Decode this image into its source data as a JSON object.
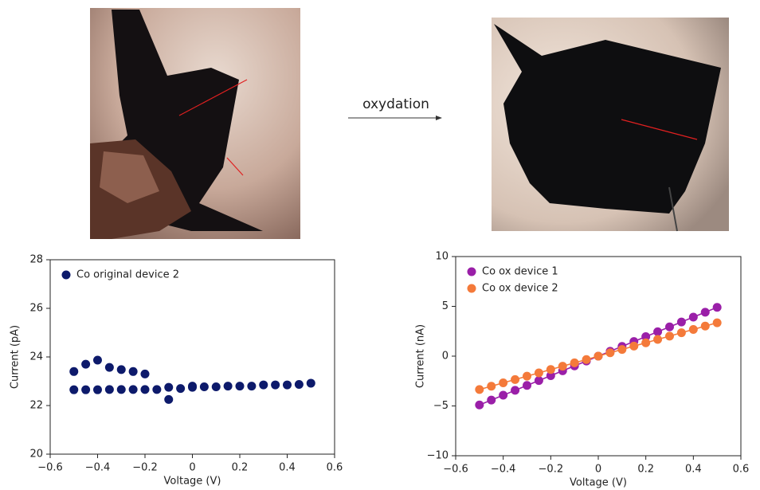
{
  "annotation": "oxydation",
  "chart_data": [
    {
      "type": "scatter",
      "xlabel": "Voltage (V)",
      "ylabel": "Current (pA)",
      "legend": "upper left",
      "xlim": [
        -0.6,
        0.6
      ],
      "ylim": [
        20,
        28
      ],
      "xticks": [
        {
          "value": -0.6,
          "label": "−0.6"
        },
        {
          "value": -0.4,
          "label": "−0.4"
        },
        {
          "value": -0.2,
          "label": "−0.2"
        },
        0,
        0.2,
        0.4,
        0.6
      ],
      "yticks": [
        20,
        22,
        24,
        26,
        28
      ],
      "x": [
        -0.5,
        -0.45,
        -0.4,
        -0.35,
        -0.3,
        -0.25,
        -0.2,
        -0.5,
        -0.45,
        -0.4,
        -0.35,
        -0.3,
        -0.25,
        -0.2,
        -0.15,
        -0.1,
        -0.05,
        0,
        0.05,
        0.1,
        0.15,
        0.2,
        0.25,
        0.3,
        0.35,
        0.4,
        0.45,
        0.5,
        -0.1,
        0
      ],
      "series": [
        {
          "name": "Co original device 2",
          "color": "#0d1a6b",
          "values": [
            23.4,
            23.7,
            23.87,
            23.57,
            23.48,
            23.4,
            23.3,
            22.65,
            22.65,
            22.65,
            22.66,
            22.66,
            22.66,
            22.66,
            22.66,
            22.75,
            22.7,
            22.8,
            22.77,
            22.77,
            22.8,
            22.8,
            22.8,
            22.85,
            22.85,
            22.85,
            22.87,
            22.92,
            22.25,
            22.75
          ]
        }
      ]
    },
    {
      "type": "line",
      "xlabel": "Voltage (V)",
      "ylabel": "Current (nA)",
      "legend": "upper left",
      "xlim": [
        -0.6,
        0.6
      ],
      "ylim": [
        -10,
        10
      ],
      "xticks": [
        {
          "value": -0.6,
          "label": "−0.6"
        },
        {
          "value": -0.4,
          "label": "−0.4"
        },
        {
          "value": -0.2,
          "label": "−0.2"
        },
        0,
        0.2,
        0.4,
        0.6
      ],
      "yticks": [
        {
          "value": -10,
          "label": "−10"
        },
        {
          "value": -5,
          "label": "−5"
        },
        0,
        5,
        10
      ],
      "x": [
        -0.5,
        -0.45,
        -0.4,
        -0.35,
        -0.3,
        -0.25,
        -0.2,
        -0.15,
        -0.1,
        -0.05,
        0,
        0.05,
        0.1,
        0.15,
        0.2,
        0.25,
        0.3,
        0.35,
        0.4,
        0.45,
        0.5
      ],
      "series": [
        {
          "name": "Co ox device 1",
          "color": "#9a1fa8",
          "values": [
            -4.9,
            -4.41,
            -3.92,
            -3.43,
            -2.94,
            -2.45,
            -1.96,
            -1.47,
            -0.98,
            -0.49,
            0,
            0.49,
            0.98,
            1.47,
            1.96,
            2.45,
            2.94,
            3.43,
            3.92,
            4.41,
            4.9
          ]
        },
        {
          "name": "Co ox device 2",
          "color": "#f47a3a",
          "values": [
            -3.35,
            -3.02,
            -2.68,
            -2.35,
            -2.01,
            -1.68,
            -1.34,
            -1.01,
            -0.67,
            -0.34,
            0,
            0.34,
            0.67,
            1.01,
            1.34,
            1.68,
            2.01,
            2.35,
            2.68,
            3.02,
            3.35
          ]
        }
      ]
    }
  ]
}
